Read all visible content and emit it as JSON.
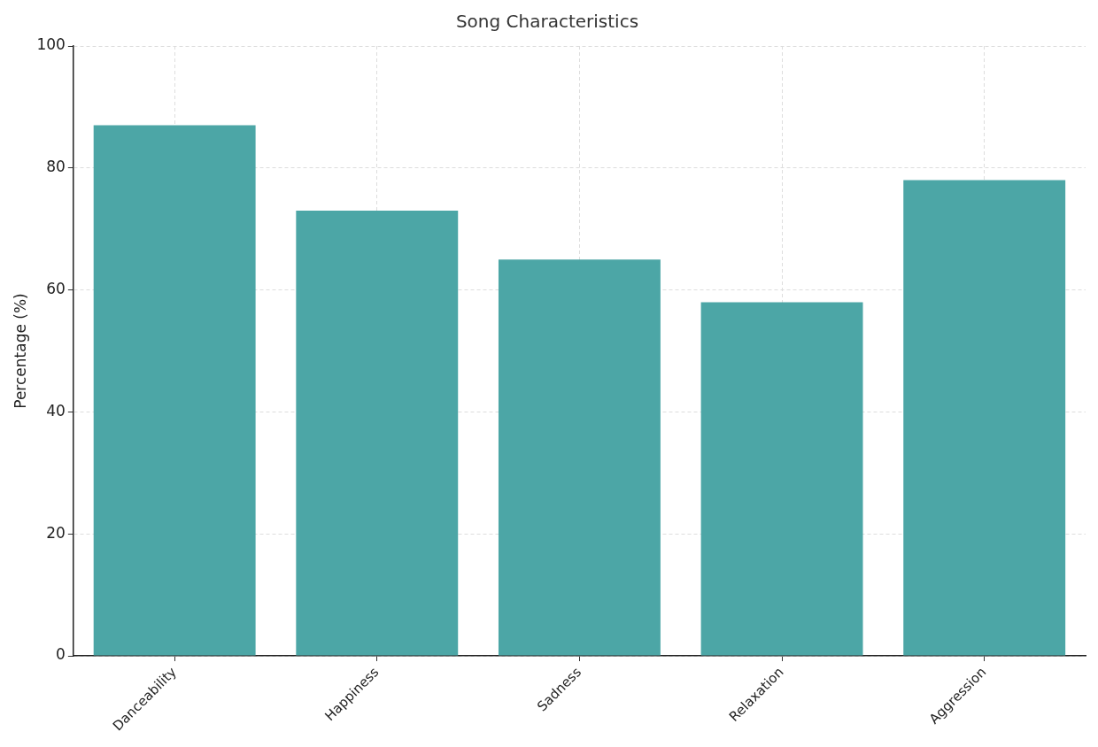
{
  "chart_data": {
    "type": "bar",
    "title": "Song Characteristics",
    "y_label": "Percentage (%)",
    "categories": [
      "Danceability",
      "Happiness",
      "Sadness",
      "Relaxation",
      "Aggression"
    ],
    "values": [
      87,
      73,
      65,
      58,
      78
    ],
    "color": "#4ca6a6",
    "ylim": [
      0,
      100
    ],
    "yticks": [
      0,
      20,
      40,
      60,
      80,
      100
    ],
    "grid": true
  }
}
